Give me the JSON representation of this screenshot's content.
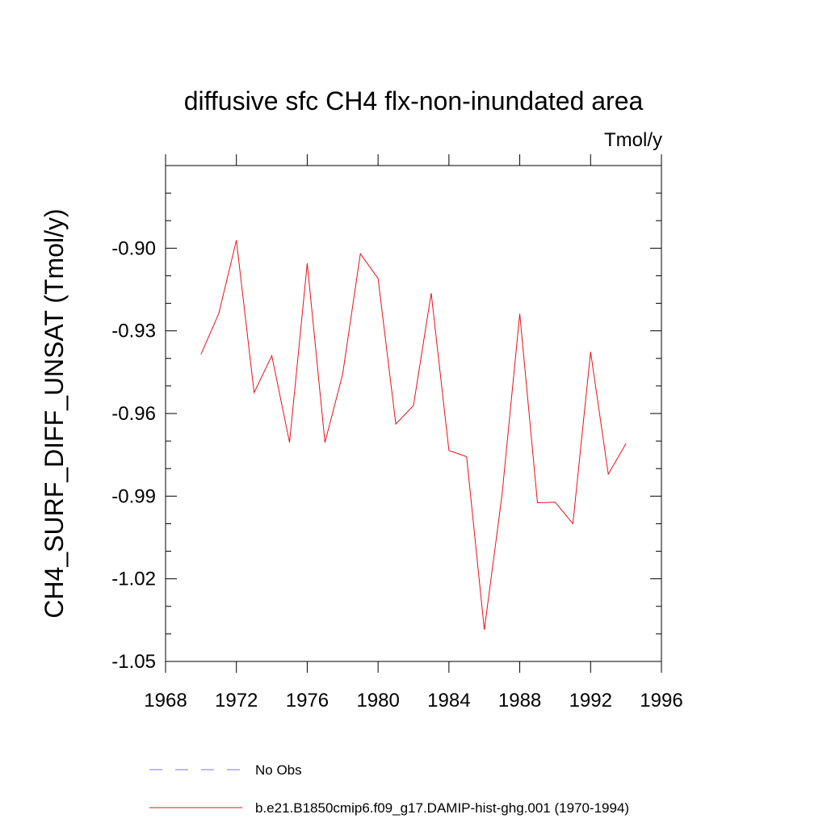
{
  "chart_data": {
    "type": "line",
    "title": "diffusive sfc CH4 flx-non-inundated area",
    "units": "Tmol/y",
    "xlabel": "",
    "ylabel": "CH4_SURF_DIFF_UNSAT  (Tmol/y)",
    "xlim": [
      1968,
      1996
    ],
    "ylim": [
      -1.05,
      -0.87
    ],
    "x_ticks": [
      1968,
      1972,
      1976,
      1980,
      1984,
      1988,
      1992,
      1996
    ],
    "x_tick_labels": [
      "1968",
      "1972",
      "1976",
      "1980",
      "1984",
      "1988",
      "1992",
      "1996"
    ],
    "y_ticks": [
      -1.05,
      -1.02,
      -0.99,
      -0.96,
      -0.93,
      -0.9
    ],
    "y_tick_labels": [
      "-1.05",
      "-1.02",
      "-0.99",
      "-0.96",
      "-0.93",
      "-0.90"
    ],
    "grid": false,
    "legend_position": "bottom",
    "series": [
      {
        "name": "No Obs",
        "style": "dashed",
        "color": "#7b7bd0",
        "x": [],
        "y": []
      },
      {
        "name": "b.e21.B1850cmip6.f09_g17.DAMIP-hist-ghg.001 (1970-1994)",
        "style": "solid",
        "color": "#e8101a",
        "x": [
          1970,
          1971,
          1972,
          1973,
          1974,
          1975,
          1976,
          1977,
          1978,
          1979,
          1980,
          1981,
          1982,
          1983,
          1984,
          1985,
          1986,
          1987,
          1988,
          1989,
          1990,
          1991,
          1992,
          1993,
          1994
        ],
        "y": [
          -0.9385,
          -0.9238,
          -0.8971,
          -0.9524,
          -0.939,
          -0.9705,
          -0.9055,
          -0.9705,
          -0.9457,
          -0.902,
          -0.911,
          -0.9638,
          -0.9571,
          -0.9163,
          -0.9734,
          -0.9757,
          -1.0385,
          -0.9895,
          -0.9238,
          -0.9924,
          -0.9922,
          -1.0,
          -0.9376,
          -0.982,
          -0.9709
        ]
      }
    ]
  }
}
